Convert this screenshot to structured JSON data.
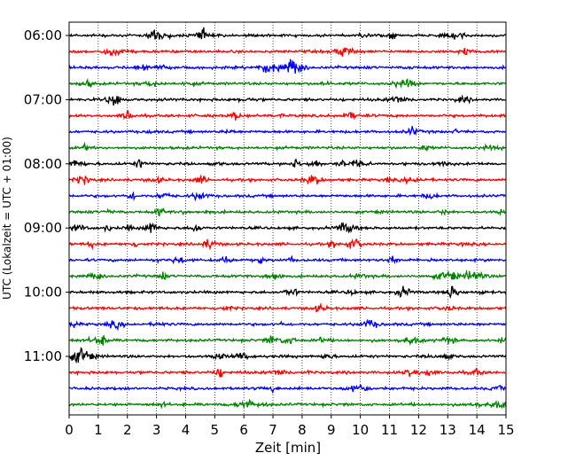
{
  "chart_data": {
    "type": "line",
    "subtype": "helicorder",
    "title": "",
    "xlabel": "Zeit  [min]",
    "ylabel": "UTC (Lokalzeit = UTC + 01:00)",
    "xlim": [
      0,
      15
    ],
    "x_ticks": [
      "0",
      "1",
      "2",
      "3",
      "4",
      "5",
      "6",
      "7",
      "8",
      "9",
      "10",
      "11",
      "12",
      "13",
      "14",
      "15"
    ],
    "y_tick_labels": [
      "06:00",
      "07:00",
      "08:00",
      "09:00",
      "10:00",
      "11:00"
    ],
    "trace_minutes": 15,
    "start_time": "06:00",
    "grid": "vertical dotted",
    "trace_colors": [
      "#000000",
      "#ff0000",
      "#0000ff",
      "#008000"
    ],
    "traces": [
      {
        "start": "06:00",
        "color": "#000000"
      },
      {
        "start": "06:15",
        "color": "#ff0000"
      },
      {
        "start": "06:30",
        "color": "#0000ff"
      },
      {
        "start": "06:45",
        "color": "#008000"
      },
      {
        "start": "07:00",
        "color": "#000000"
      },
      {
        "start": "07:15",
        "color": "#ff0000"
      },
      {
        "start": "07:30",
        "color": "#0000ff"
      },
      {
        "start": "07:45",
        "color": "#008000"
      },
      {
        "start": "08:00",
        "color": "#000000"
      },
      {
        "start": "08:15",
        "color": "#ff0000"
      },
      {
        "start": "08:30",
        "color": "#0000ff"
      },
      {
        "start": "08:45",
        "color": "#008000"
      },
      {
        "start": "09:00",
        "color": "#000000"
      },
      {
        "start": "09:15",
        "color": "#ff0000"
      },
      {
        "start": "09:30",
        "color": "#0000ff"
      },
      {
        "start": "09:45",
        "color": "#008000"
      },
      {
        "start": "10:00",
        "color": "#000000"
      },
      {
        "start": "10:15",
        "color": "#ff0000"
      },
      {
        "start": "10:30",
        "color": "#0000ff"
      },
      {
        "start": "10:45",
        "color": "#008000"
      },
      {
        "start": "11:00",
        "color": "#000000"
      },
      {
        "start": "11:15",
        "color": "#ff0000"
      },
      {
        "start": "11:30",
        "color": "#0000ff"
      },
      {
        "start": "11:45",
        "color": "#008000"
      }
    ]
  }
}
